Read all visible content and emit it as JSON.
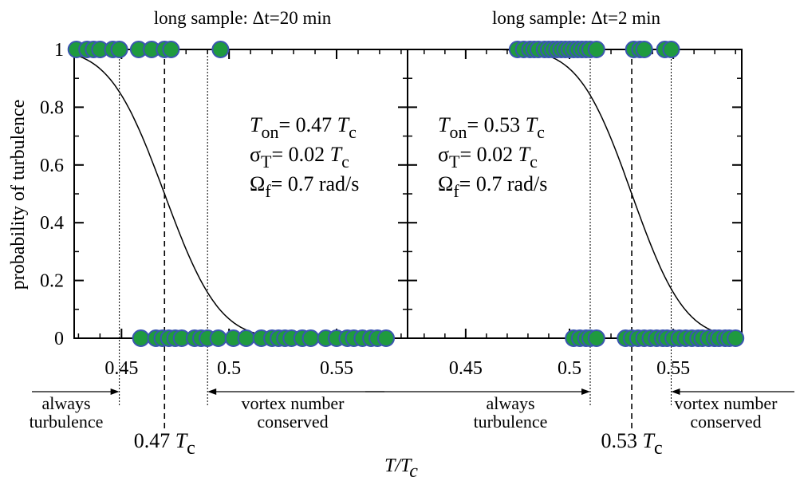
{
  "chart_data": {
    "type": "scatter",
    "y_axis": {
      "label": "probability of turbulence",
      "range": [
        0,
        1
      ],
      "ticks": [
        0,
        0.2,
        0.4,
        0.6,
        0.8,
        1
      ],
      "tick_labels": [
        "0",
        "0.2",
        "0.4",
        "0.6",
        "0.8",
        "1"
      ]
    },
    "x_axis": {
      "label": "T/T",
      "label_sub": "c"
    },
    "panels": [
      {
        "title": "long sample: Δt=20 min",
        "xlim": [
          0.428,
          0.583
        ],
        "ticks": [
          0.45,
          0.5,
          0.55
        ],
        "tick_labels": [
          "0.45",
          "0.5",
          "0.55"
        ],
        "params": [
          {
            "sym": "T",
            "sub": "on",
            "rest": "= 0.47 ",
            "unit": "T",
            "unit_sub": "c"
          },
          {
            "sym": "σ",
            "sub": "T",
            "rest": "= 0.02 ",
            "unit": "T",
            "unit_sub": "c"
          },
          {
            "sym": "Ω",
            "sub": "f",
            "rest": "= 0.7 rad/s",
            "unit": "",
            "unit_sub": ""
          }
        ],
        "fit": {
          "T_on": 0.47,
          "sigma": 0.02
        },
        "center_marker": {
          "x": 0.47,
          "label": "0.47 ",
          "unit": "T",
          "unit_sub": "c"
        },
        "left_region": {
          "x": 0.449,
          "label_lines": [
            "always",
            "turbulence"
          ]
        },
        "right_region": {
          "x": 0.49,
          "label_lines": [
            "vortex number",
            "conserved"
          ]
        },
        "turbulent_points": [
          0.429,
          0.434,
          0.437,
          0.44,
          0.446,
          0.449,
          0.458,
          0.464,
          0.47,
          0.473,
          0.496
        ],
        "laminar_points": [
          0.459,
          0.466,
          0.469,
          0.472,
          0.475,
          0.478,
          0.484,
          0.487,
          0.49,
          0.495,
          0.502,
          0.508,
          0.515,
          0.52,
          0.523,
          0.526,
          0.529,
          0.534,
          0.538,
          0.545,
          0.55,
          0.555,
          0.558,
          0.562,
          0.566,
          0.569,
          0.573
        ]
      },
      {
        "title": "long sample: Δt=2 min",
        "xlim": [
          0.422,
          0.583
        ],
        "ticks": [
          0.45,
          0.5,
          0.55
        ],
        "tick_labels": [
          "0.45",
          "0.5",
          "0.55"
        ],
        "params": [
          {
            "sym": "T",
            "sub": "on",
            "rest": "= 0.53 ",
            "unit": "T",
            "unit_sub": "c"
          },
          {
            "sym": "σ",
            "sub": "T",
            "rest": "= 0.02 ",
            "unit": "T",
            "unit_sub": "c"
          },
          {
            "sym": "Ω",
            "sub": "f",
            "rest": "= 0.7 rad/s",
            "unit": "",
            "unit_sub": ""
          }
        ],
        "fit": {
          "T_on": 0.53,
          "sigma": 0.02
        },
        "center_marker": {
          "x": 0.53,
          "label": "0.53 ",
          "unit": "T",
          "unit_sub": "c"
        },
        "left_region": {
          "x": 0.51,
          "label_lines": [
            "always",
            "turbulence"
          ]
        },
        "right_region": {
          "x": 0.549,
          "label_lines": [
            "vortex number",
            "conserved"
          ]
        },
        "turbulent_points": [
          0.475,
          0.478,
          0.481,
          0.483,
          0.485,
          0.488,
          0.49,
          0.492,
          0.494,
          0.496,
          0.498,
          0.5,
          0.502,
          0.504,
          0.506,
          0.508,
          0.51,
          0.513,
          0.531,
          0.534,
          0.536,
          0.546,
          0.549
        ],
        "laminar_points": [
          0.502,
          0.505,
          0.508,
          0.51,
          0.513,
          0.527,
          0.53,
          0.533,
          0.536,
          0.539,
          0.542,
          0.545,
          0.547,
          0.55,
          0.553,
          0.556,
          0.559,
          0.562,
          0.564,
          0.567,
          0.57,
          0.572,
          0.575,
          0.577,
          0.58
        ]
      }
    ]
  }
}
